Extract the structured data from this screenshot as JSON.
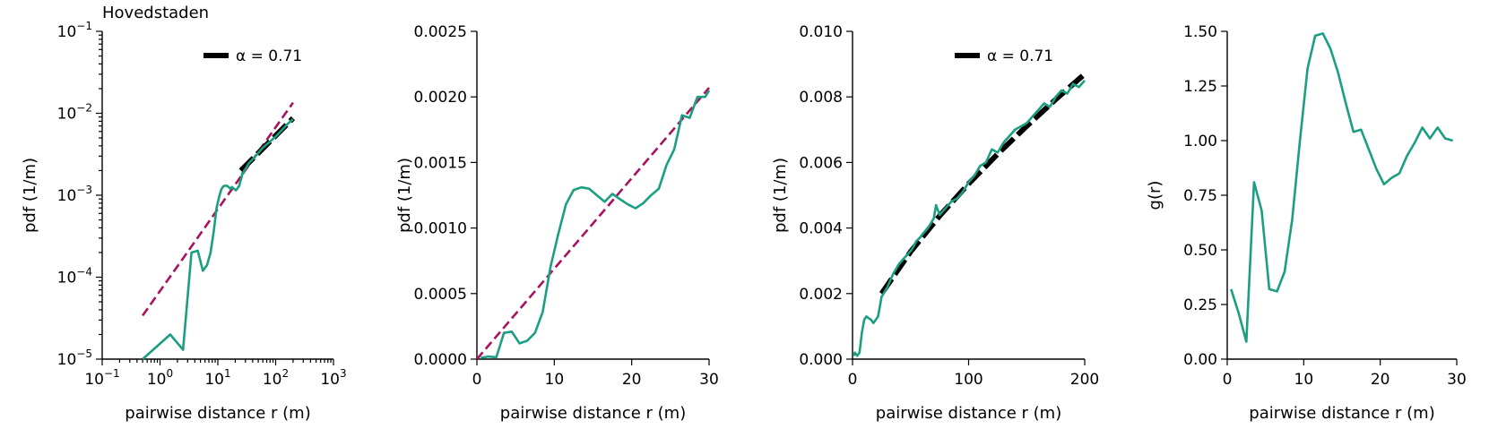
{
  "colors": {
    "data": "#1b9e82",
    "fit": "#a8125f",
    "envelope": "#000000"
  },
  "chart_data": [
    {
      "type": "line",
      "title": "Hovedstaden",
      "xscale": "log",
      "yscale": "log",
      "xlim": [
        0.1,
        1000
      ],
      "ylim": [
        1e-05,
        0.1
      ],
      "xlabel": "pairwise distance r (m)",
      "ylabel": "pdf (1/m)",
      "xticks": [
        {
          "v": 0.1,
          "base": "10",
          "exp": "−1"
        },
        {
          "v": 1,
          "base": "10",
          "exp": "0"
        },
        {
          "v": 10,
          "base": "10",
          "exp": "1"
        },
        {
          "v": 100,
          "base": "10",
          "exp": "2"
        },
        {
          "v": 1000,
          "base": "10",
          "exp": "3"
        }
      ],
      "yticks": [
        {
          "v": 1e-05,
          "base": "10",
          "exp": "−5"
        },
        {
          "v": 0.0001,
          "base": "10",
          "exp": "−4"
        },
        {
          "v": 0.001,
          "base": "10",
          "exp": "−3"
        },
        {
          "v": 0.01,
          "base": "10",
          "exp": "−2"
        },
        {
          "v": 0.1,
          "base": "10",
          "exp": "−1"
        }
      ],
      "legend": {
        "label": "α = 0.71",
        "position": "top-right"
      },
      "series": [
        {
          "name": "power-law fit",
          "style": "dashed-fit",
          "x": [
            0.5,
            200
          ],
          "y": [
            3.4e-05,
            0.0135
          ]
        },
        {
          "name": "α = 0.71",
          "style": "thick-black",
          "x": [
            25,
            200
          ],
          "y": [
            0.002,
            0.0087
          ]
        },
        {
          "name": "data",
          "style": "data",
          "x": [
            0.5,
            1.5,
            2.5,
            3.5,
            4.5,
            5.5,
            6.5,
            7.5,
            8.5,
            9.5,
            10.5,
            11.5,
            12.5,
            13.5,
            14.5,
            15.5,
            16.5,
            17.5,
            18.5,
            19.5,
            20.5,
            21.5,
            22.5,
            23.5,
            24.5,
            25.5,
            26.5,
            27.5,
            28.5,
            29.5,
            35,
            45,
            60,
            80,
            100,
            130,
            160,
            200
          ],
          "y": [
            1e-05,
            2e-05,
            1.3e-05,
            0.0002,
            0.00021,
            0.00012,
            0.00014,
            0.0002,
            0.00036,
            0.0007,
            0.00095,
            0.00118,
            0.00129,
            0.00131,
            0.0013,
            0.00125,
            0.0012,
            0.00126,
            0.00122,
            0.00118,
            0.00115,
            0.00119,
            0.00125,
            0.0013,
            0.00148,
            0.0016,
            0.00186,
            0.00184,
            0.002,
            0.00205,
            0.0025,
            0.003,
            0.0038,
            0.0045,
            0.0052,
            0.0063,
            0.0074,
            0.0085
          ]
        }
      ]
    },
    {
      "type": "line",
      "title": "",
      "xscale": "linear",
      "yscale": "linear",
      "xlim": [
        0,
        30
      ],
      "ylim": [
        0,
        0.0025
      ],
      "xlabel": "pairwise distance r (m)",
      "ylabel": "pdf (1/m)",
      "xticks": [
        {
          "v": 0,
          "t": "0"
        },
        {
          "v": 10,
          "t": "10"
        },
        {
          "v": 20,
          "t": "20"
        },
        {
          "v": 30,
          "t": "30"
        }
      ],
      "yticks": [
        {
          "v": 0,
          "t": "0.0000"
        },
        {
          "v": 0.0005,
          "t": "0.0005"
        },
        {
          "v": 0.001,
          "t": "0.0010"
        },
        {
          "v": 0.0015,
          "t": "0.0015"
        },
        {
          "v": 0.002,
          "t": "0.0020"
        },
        {
          "v": 0.0025,
          "t": "0.0025"
        }
      ],
      "series": [
        {
          "name": "power-law fit",
          "style": "dashed-fit",
          "x": [
            0,
            30
          ],
          "y": [
            0,
            0.00207
          ]
        },
        {
          "name": "data",
          "style": "data",
          "x": [
            0.5,
            1.5,
            2.5,
            3.5,
            4.5,
            5.5,
            6.5,
            7.5,
            8.5,
            9.5,
            10.5,
            11.5,
            12.5,
            13.5,
            14.5,
            15.5,
            16.5,
            17.5,
            18.5,
            19.5,
            20.5,
            21.5,
            22.5,
            23.5,
            24.5,
            25.5,
            26.5,
            27.5,
            28.5,
            29.5,
            30
          ],
          "y": [
            1e-05,
            2e-05,
            1.3e-05,
            0.0002,
            0.00021,
            0.00012,
            0.00014,
            0.0002,
            0.00036,
            0.0007,
            0.00095,
            0.00118,
            0.00129,
            0.00131,
            0.0013,
            0.00125,
            0.0012,
            0.00126,
            0.00122,
            0.00118,
            0.00115,
            0.00119,
            0.00125,
            0.0013,
            0.00148,
            0.0016,
            0.00186,
            0.00184,
            0.002,
            0.002,
            0.00205
          ]
        }
      ]
    },
    {
      "type": "line",
      "title": "",
      "xscale": "linear",
      "yscale": "linear",
      "xlim": [
        0,
        200
      ],
      "ylim": [
        0,
        0.01
      ],
      "xlabel": "pairwise distance r (m)",
      "ylabel": "pdf (1/m)",
      "xticks": [
        {
          "v": 0,
          "t": "0"
        },
        {
          "v": 100,
          "t": "100"
        },
        {
          "v": 200,
          "t": "200"
        }
      ],
      "yticks": [
        {
          "v": 0,
          "t": "0.000"
        },
        {
          "v": 0.002,
          "t": "0.002"
        },
        {
          "v": 0.004,
          "t": "0.004"
        },
        {
          "v": 0.006,
          "t": "0.006"
        },
        {
          "v": 0.008,
          "t": "0.008"
        },
        {
          "v": 0.01,
          "t": "0.010"
        }
      ],
      "legend": {
        "label": "α = 0.71",
        "position": "top-right"
      },
      "series": [
        {
          "name": "α = 0.71",
          "style": "thick-black",
          "x": [
            25,
            50,
            75,
            100,
            125,
            150,
            175,
            200
          ],
          "y": [
            0.002,
            0.00328,
            0.00437,
            0.00535,
            0.00626,
            0.00711,
            0.00792,
            0.0087
          ]
        },
        {
          "name": "data",
          "style": "data",
          "x": [
            1,
            2,
            4,
            6,
            8,
            10,
            12,
            14,
            16,
            18,
            20,
            22,
            25,
            30,
            35,
            40,
            45,
            50,
            52,
            55,
            58,
            60,
            65,
            70,
            72,
            75,
            80,
            85,
            90,
            95,
            100,
            105,
            110,
            115,
            120,
            125,
            130,
            135,
            140,
            145,
            150,
            155,
            160,
            165,
            170,
            175,
            180,
            185,
            190,
            195,
            200
          ],
          "y": [
            0.0001,
            0.0002,
            0.0001,
            0.0002,
            0.0008,
            0.0012,
            0.0013,
            0.00125,
            0.0012,
            0.0011,
            0.0012,
            0.0013,
            0.0019,
            0.0022,
            0.0026,
            0.0029,
            0.0031,
            0.0033,
            0.0034,
            0.0036,
            0.0037,
            0.0038,
            0.004,
            0.0043,
            0.0047,
            0.0044,
            0.0046,
            0.0048,
            0.0049,
            0.0051,
            0.0054,
            0.0056,
            0.0059,
            0.006,
            0.0064,
            0.0063,
            0.0066,
            0.0068,
            0.007,
            0.0071,
            0.0072,
            0.0074,
            0.0076,
            0.0078,
            0.0077,
            0.008,
            0.0082,
            0.0081,
            0.0084,
            0.0083,
            0.0085
          ]
        }
      ]
    },
    {
      "type": "line",
      "title": "",
      "xscale": "linear",
      "yscale": "linear",
      "xlim": [
        0,
        30
      ],
      "ylim": [
        0,
        1.5
      ],
      "xlabel": "pairwise distance r (m)",
      "ylabel": "g(r)",
      "xticks": [
        {
          "v": 0,
          "t": "0"
        },
        {
          "v": 10,
          "t": "10"
        },
        {
          "v": 20,
          "t": "20"
        },
        {
          "v": 30,
          "t": "30"
        }
      ],
      "yticks": [
        {
          "v": 0,
          "t": "0.00"
        },
        {
          "v": 0.25,
          "t": "0.25"
        },
        {
          "v": 0.5,
          "t": "0.50"
        },
        {
          "v": 0.75,
          "t": "0.75"
        },
        {
          "v": 1.0,
          "t": "1.00"
        },
        {
          "v": 1.25,
          "t": "1.25"
        },
        {
          "v": 1.5,
          "t": "1.50"
        }
      ],
      "series": [
        {
          "name": "data",
          "style": "data",
          "x": [
            0.5,
            1.5,
            2.5,
            3.5,
            4.5,
            5.5,
            6.5,
            7.5,
            8.5,
            9.5,
            10.5,
            11.5,
            12.5,
            13.5,
            14.5,
            15.5,
            16.5,
            17.5,
            18.5,
            19.5,
            20.5,
            21.5,
            22.5,
            23.5,
            24.5,
            25.5,
            26.5,
            27.5,
            28.5,
            29.5
          ],
          "y": [
            0.32,
            0.21,
            0.08,
            0.81,
            0.68,
            0.32,
            0.31,
            0.4,
            0.64,
            1.0,
            1.33,
            1.48,
            1.49,
            1.42,
            1.31,
            1.17,
            1.04,
            1.05,
            0.96,
            0.87,
            0.8,
            0.83,
            0.85,
            0.93,
            0.99,
            1.06,
            1.01,
            1.06,
            1.01,
            1.0
          ]
        }
      ]
    }
  ]
}
